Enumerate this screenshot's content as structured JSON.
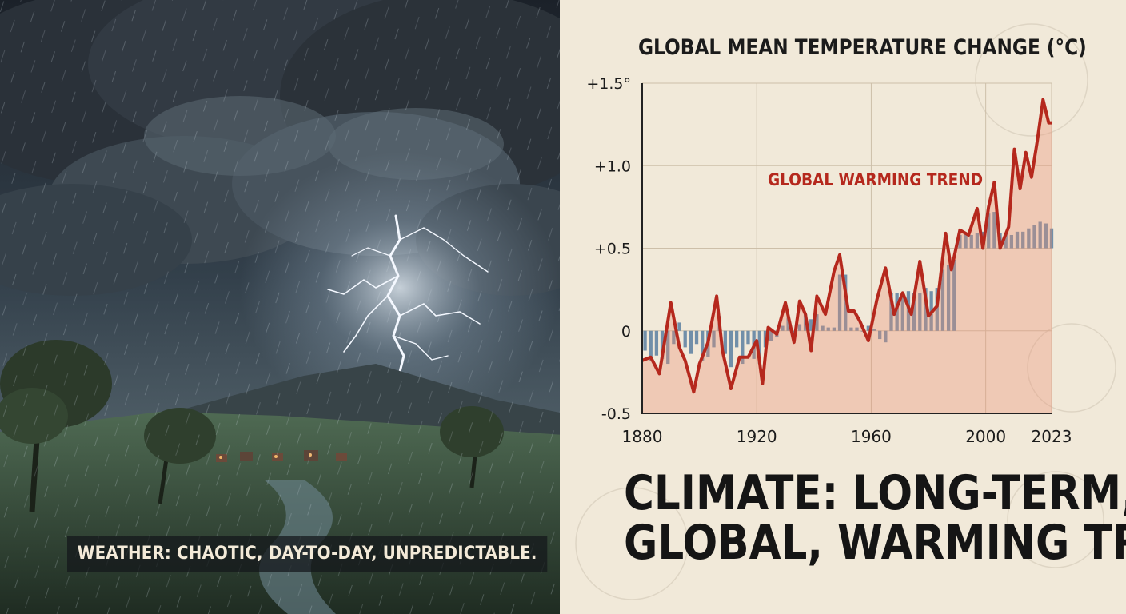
{
  "weather_caption": "WEATHER: CHAOTIC, DAY-TO-DAY, UNPREDICTABLE.",
  "main_heading": {
    "line1": "CLIMATE: LONG-TERM,",
    "line2": "GLOBAL, WARMING TREND"
  },
  "colors": {
    "trend_line": "#b5281d",
    "trend_fill": "#ec8e74",
    "bars": "#5a7fa0",
    "heading": "#151515"
  },
  "chart_data": {
    "type": "line",
    "title": "GLOBAL MEAN TEMPERATURE CHANGE (°C)",
    "annotation": "GLOBAL WARMING TREND",
    "xlabel": "",
    "ylabel": "",
    "xlim": [
      1880,
      2023
    ],
    "ylim": [
      -0.5,
      1.5
    ],
    "y_ticks": [
      {
        "value": 1.5,
        "label": "+1.5°"
      },
      {
        "value": 1.0,
        "label": "+1.0"
      },
      {
        "value": 0.5,
        "label": "+0.5"
      },
      {
        "value": 0,
        "label": "0"
      },
      {
        "value": -0.5,
        "label": "-0.5"
      }
    ],
    "x_ticks": [
      {
        "value": 1880,
        "label": "1880"
      },
      {
        "value": 1920,
        "label": "1920"
      },
      {
        "value": 1960,
        "label": "1960"
      },
      {
        "value": 2000,
        "label": "2000"
      },
      {
        "value": 2023,
        "label": "2023"
      }
    ],
    "grid": true,
    "series": [
      {
        "type": "line",
        "x": [
          1880,
          1883,
          1886,
          1890,
          1893,
          1895,
          1898,
          1900,
          1903,
          1906,
          1908,
          1911,
          1914,
          1917,
          1920,
          1922,
          1924,
          1927,
          1930,
          1933,
          1935,
          1937,
          1939,
          1941,
          1944,
          1947,
          1949,
          1952,
          1954,
          1956,
          1959,
          1962,
          1965,
          1968,
          1971,
          1974,
          1977,
          1980,
          1983,
          1986,
          1988,
          1991,
          1994,
          1997,
          1999,
          2001,
          2003,
          2005,
          2008,
          2010,
          2012,
          2014,
          2016,
          2018,
          2020,
          2022,
          2023
        ],
        "y": [
          -0.18,
          -0.16,
          -0.26,
          0.17,
          -0.1,
          -0.18,
          -0.37,
          -0.2,
          -0.07,
          0.21,
          -0.12,
          -0.35,
          -0.16,
          -0.16,
          -0.06,
          -0.32,
          0.02,
          -0.02,
          0.17,
          -0.07,
          0.18,
          0.1,
          -0.12,
          0.21,
          0.1,
          0.36,
          0.46,
          0.12,
          0.12,
          0.06,
          -0.06,
          0.19,
          0.38,
          0.1,
          0.23,
          0.1,
          0.42,
          0.09,
          0.15,
          0.59,
          0.37,
          0.61,
          0.58,
          0.74,
          0.5,
          0.75,
          0.9,
          0.5,
          0.63,
          1.1,
          0.86,
          1.08,
          0.93,
          1.15,
          1.4,
          1.26,
          1.26
        ]
      },
      {
        "type": "bar",
        "x": [
          1881,
          1883,
          1885,
          1887,
          1889,
          1891,
          1893,
          1895,
          1897,
          1899,
          1901,
          1903,
          1905,
          1907,
          1909,
          1911,
          1913,
          1915,
          1917,
          1919,
          1921,
          1923,
          1925,
          1927,
          1929,
          1931,
          1933,
          1935,
          1937,
          1939,
          1941,
          1943,
          1945,
          1947,
          1949,
          1951,
          1953,
          1955,
          1957,
          1959,
          1961,
          1963,
          1965,
          1967,
          1969,
          1971,
          1973,
          1975,
          1977,
          1979,
          1981,
          1983,
          1985,
          1987,
          1989,
          1991,
          1993,
          1995,
          1997,
          1999,
          2001,
          2003,
          2005,
          2007,
          2009,
          2011,
          2013,
          2015,
          2017,
          2019,
          2021,
          2023
        ],
        "y": [
          -0.12,
          -0.18,
          -0.15,
          -0.17,
          -0.2,
          -0.08,
          0.05,
          -0.1,
          -0.14,
          -0.08,
          -0.18,
          -0.16,
          -0.1,
          0.09,
          -0.14,
          -0.22,
          -0.1,
          -0.2,
          -0.08,
          -0.17,
          -0.2,
          -0.1,
          -0.06,
          -0.04,
          0.03,
          0.08,
          -0.03,
          0.04,
          0.1,
          0.07,
          0.1,
          0.03,
          0.02,
          0.02,
          0.34,
          0.34,
          0.02,
          0.02,
          0,
          0.03,
          0.01,
          -0.05,
          -0.07,
          0.23,
          0.23,
          0.23,
          0.24,
          0.23,
          0.23,
          0.26,
          0.24,
          0.26,
          0.37,
          0.4,
          0.43,
          0.58,
          0.59,
          0.58,
          0.59,
          0.6,
          0.71,
          0.72,
          0.59,
          0.59,
          0.58,
          0.6,
          0.6,
          0.62,
          0.64,
          0.66,
          0.65,
          0.62
        ]
      }
    ]
  }
}
